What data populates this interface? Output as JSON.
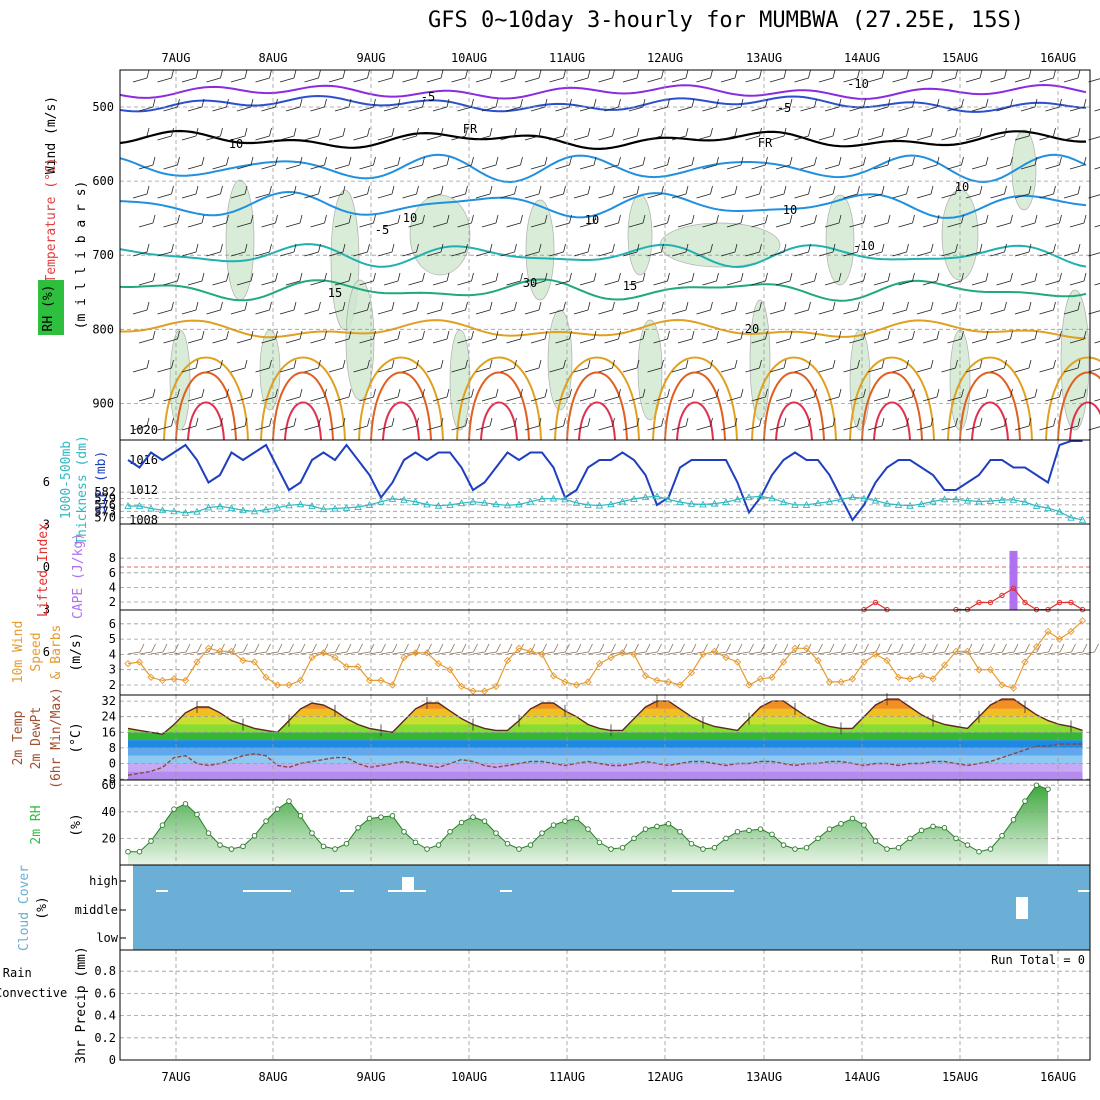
{
  "title": "GFS 0~10day 3-hourly for MUMBWA (27.25E, 15S)",
  "date_labels": [
    "7AUG",
    "8AUG",
    "9AUG",
    "10AUG",
    "11AUG",
    "12AUG",
    "13AUG",
    "14AUG",
    "15AUG",
    "16AUG"
  ],
  "colors": {
    "bg": "#ffffff",
    "grid": "#9a9a9a",
    "cloud": "#6baed6",
    "rh_fill": "#66bb66",
    "slp": "#1f3fbf",
    "thick": "#30b8c0",
    "wind10": "#e69a30",
    "li": "#e03030",
    "cape": "#b070f0"
  },
  "chart_data": [
    {
      "type": "heatmap",
      "panel": "upper-air",
      "ylabels": [
        "Wind (m/s)",
        "Temperature (°C)",
        "RH (%)"
      ],
      "yaxis_name": "(m i l l i b a r s)",
      "yticks": [
        500,
        600,
        700,
        800,
        900
      ],
      "contour_labels": [
        "-10",
        "-5",
        "-5",
        "FR",
        "FR",
        "-5",
        "-10",
        "15",
        "15",
        "20",
        "10",
        "10",
        "10",
        "10",
        "10",
        "30"
      ]
    },
    {
      "type": "line",
      "panel": "slp-thickness",
      "series": [
        {
          "name": "SLP (mb)",
          "values": [
            1016,
            1015,
            1017,
            1016,
            1017,
            1018,
            1016,
            1013,
            1014,
            1017,
            1016,
            1017,
            1018,
            1015,
            1012,
            1013,
            1016,
            1017,
            1016,
            1018,
            1016,
            1014,
            1011,
            1013,
            1016,
            1017,
            1016,
            1017,
            1017,
            1015,
            1012,
            1013,
            1015,
            1017,
            1016,
            1017,
            1017,
            1015,
            1011,
            1012,
            1015,
            1016,
            1016,
            1017,
            1016,
            1014,
            1010,
            1011,
            1015,
            1016,
            1016,
            1016,
            1016,
            1013,
            1009,
            1011,
            1014,
            1016,
            1017,
            1016,
            1016,
            1014,
            1011,
            1008,
            1010,
            1013,
            1015,
            1016,
            1016,
            1015,
            1014,
            1012,
            1012,
            1013,
            1014,
            1016,
            1016,
            1015,
            1015,
            1014,
            1013,
            1018,
            1021,
            1024
          ]
        },
        {
          "name": "Thickness 1000-500mb (dm)",
          "values": [
            575.5,
            575.5,
            574.3,
            573.5,
            573.0,
            572.3,
            572.8,
            574.8,
            575.3,
            574.5,
            573.5,
            573.0,
            573.8,
            574.7,
            575.8,
            576.3,
            575.5,
            574.0,
            574.3,
            574.6,
            575.0,
            576.0,
            577.5,
            578.8,
            578.4,
            577.4,
            576.2,
            575.6,
            576.0,
            576.8,
            577.5,
            577.0,
            576.3,
            575.8,
            576.2,
            577.5,
            578.8,
            579.0,
            578.6,
            577.0,
            576.0,
            575.7,
            576.3,
            577.6,
            578.8,
            579.6,
            580.0,
            578.6,
            577.3,
            576.5,
            576.2,
            576.6,
            577.3,
            578.6,
            579.6,
            580.0,
            579.1,
            577.3,
            576.0,
            576.0,
            576.8,
            577.5,
            578.6,
            579.6,
            579.0,
            578.0,
            576.6,
            576.0,
            575.6,
            576.4,
            577.6,
            578.6,
            578.6,
            578.0,
            577.6,
            577.8,
            578.3,
            578.4,
            577.3,
            575.5,
            574.5,
            572.8,
            570.0,
            569.0
          ]
        }
      ],
      "ylabels": [
        "Thickness (dm)",
        "1000-500mb",
        "SLP (mb)"
      ],
      "yticks_left": [
        570,
        573,
        576,
        579,
        582
      ],
      "yticks_right": [
        1008,
        1012,
        1016,
        1020
      ]
    },
    {
      "type": "bar",
      "panel": "cape-li",
      "series": [
        {
          "name": "CAPE (J/kg)",
          "values": [
            {
              "x": 77,
              "value": 9
            }
          ]
        },
        {
          "name": "Lifted Index",
          "values": [
            {
              "x": 64,
              "value": 3.0
            },
            {
              "x": 65,
              "value": 2.5
            },
            {
              "x": 66,
              "value": 3.0
            },
            {
              "x": 72,
              "value": 3.0
            },
            {
              "x": 73,
              "value": 3.0
            },
            {
              "x": 74,
              "value": 2.5
            },
            {
              "x": 75,
              "value": 2.5
            },
            {
              "x": 76,
              "value": 2.0
            },
            {
              "x": 77,
              "value": 1.5
            },
            {
              "x": 78,
              "value": 2.5
            },
            {
              "x": 79,
              "value": 3.0
            },
            {
              "x": 80,
              "value": 3.0
            },
            {
              "x": 81,
              "value": 2.5
            },
            {
              "x": 82,
              "value": 2.5
            },
            {
              "x": 83,
              "value": 3.0
            }
          ]
        }
      ],
      "ylabels": [
        "Lifted Index",
        "CAPE (J/kg)"
      ],
      "yticks_left": [
        -6,
        -3,
        0,
        3,
        6
      ],
      "yticks_right": [
        2,
        4,
        6,
        8
      ]
    },
    {
      "type": "line",
      "panel": "wind10m",
      "series": [
        {
          "name": "10m Wind Speed (m/s)",
          "values": [
            3.4,
            3.5,
            2.5,
            2.3,
            2.4,
            2.3,
            3.5,
            4.4,
            4.2,
            4.2,
            3.6,
            3.5,
            2.5,
            2.0,
            2.0,
            2.3,
            3.8,
            4.1,
            3.8,
            3.2,
            3.2,
            2.3,
            2.3,
            2.0,
            3.8,
            4.1,
            4.1,
            3.4,
            3.0,
            1.9,
            1.6,
            1.6,
            1.9,
            3.6,
            4.4,
            4.2,
            4.0,
            2.6,
            2.2,
            2.0,
            2.2,
            3.4,
            3.8,
            4.1,
            4.0,
            2.6,
            2.3,
            2.2,
            2.0,
            2.8,
            4.0,
            4.2,
            3.8,
            3.5,
            2.0,
            2.4,
            2.5,
            3.5,
            4.4,
            4.4,
            3.6,
            2.2,
            2.2,
            2.4,
            3.5,
            4.0,
            3.6,
            2.5,
            2.4,
            2.6,
            2.4,
            3.3,
            4.2,
            4.2,
            3.0,
            3.0,
            2.0,
            1.8,
            3.5,
            4.5,
            5.5,
            5.0,
            5.5,
            6.2
          ]
        }
      ],
      "ylabels": [
        "10m Wind",
        "Speed",
        "& Barbs",
        "(m/s)"
      ],
      "yticks": [
        2,
        3,
        4,
        5,
        6
      ]
    },
    {
      "type": "area",
      "panel": "temperature",
      "series": [
        {
          "name": "2m Temp",
          "values": [
            18,
            17,
            16,
            15,
            20,
            26,
            29,
            29,
            26,
            22,
            20,
            18,
            17,
            16,
            22,
            28,
            31,
            30,
            27,
            23,
            20,
            18,
            17,
            16,
            22,
            28,
            31,
            31,
            27,
            23,
            20,
            18,
            17,
            17,
            22,
            28,
            31,
            31,
            27,
            24,
            20,
            18,
            17,
            17,
            23,
            29,
            32,
            32,
            28,
            24,
            21,
            19,
            18,
            17,
            23,
            29,
            32,
            32,
            28,
            24,
            21,
            19,
            18,
            18,
            24,
            30,
            33,
            33,
            29,
            25,
            22,
            20,
            19,
            18,
            24,
            30,
            33,
            33,
            29,
            25,
            22,
            20,
            19,
            17
          ]
        },
        {
          "name": "2m DewPt",
          "values": [
            -6,
            -5,
            -4,
            -2,
            3,
            4,
            0,
            -1,
            0,
            2,
            4,
            5,
            4,
            -1,
            -2,
            0,
            1,
            2,
            3,
            3,
            0,
            -2,
            -1,
            0,
            1,
            0,
            -1,
            -2,
            0,
            2,
            1,
            -1,
            -2,
            -1,
            0,
            1,
            1,
            0,
            -1,
            0,
            1,
            0,
            -1,
            -1,
            0,
            1,
            0,
            -1,
            0,
            1,
            1,
            0,
            -1,
            0,
            0,
            1,
            1,
            0,
            -1,
            0,
            0,
            1,
            1,
            0,
            -1,
            0,
            0,
            -1,
            0,
            0,
            1,
            1,
            0,
            -1,
            0,
            1,
            3,
            5,
            7,
            9,
            9,
            10,
            10,
            10
          ]
        }
      ],
      "ylabels": [
        "2m Temp",
        "2m DewPt",
        "(6hr Min/Max)",
        "(°C)"
      ],
      "yticks": [
        -8,
        0,
        8,
        16,
        24,
        32
      ]
    },
    {
      "type": "area",
      "panel": "rh2m",
      "series": [
        {
          "name": "2m RH",
          "values": [
            10,
            10,
            18,
            30,
            42,
            46,
            38,
            24,
            15,
            12,
            14,
            22,
            33,
            42,
            48,
            37,
            24,
            14,
            12,
            16,
            28,
            35,
            36,
            37,
            25,
            17,
            12,
            15,
            25,
            32,
            36,
            33,
            24,
            16,
            12,
            15,
            24,
            30,
            33,
            35,
            27,
            17,
            12,
            13,
            20,
            27,
            29,
            31,
            25,
            16,
            12,
            13,
            20,
            25,
            26,
            27,
            23,
            15,
            12,
            13,
            20,
            27,
            31,
            35,
            30,
            18,
            12,
            13,
            20,
            26,
            29,
            28,
            20,
            15,
            10,
            12,
            22,
            34,
            48,
            60,
            57
          ]
        }
      ],
      "ylabels": [
        "2m RH",
        "(%)"
      ],
      "yticks": [
        20,
        40,
        60
      ]
    },
    {
      "type": "heatmap",
      "panel": "cloud",
      "ylabels": [
        "Cloud Cover",
        "(%)"
      ],
      "levels": [
        "high",
        "middle",
        "low"
      ]
    },
    {
      "type": "bar",
      "panel": "precip",
      "series": [
        {
          "name": "Total / Rain",
          "values": []
        },
        {
          "name": "Convective",
          "values": []
        }
      ],
      "ylabels": [
        "3hr Precip (mm)"
      ],
      "yticks": [
        0,
        0.2,
        0.4,
        0.6,
        0.8
      ],
      "annotation": "Run Total = 0"
    }
  ]
}
